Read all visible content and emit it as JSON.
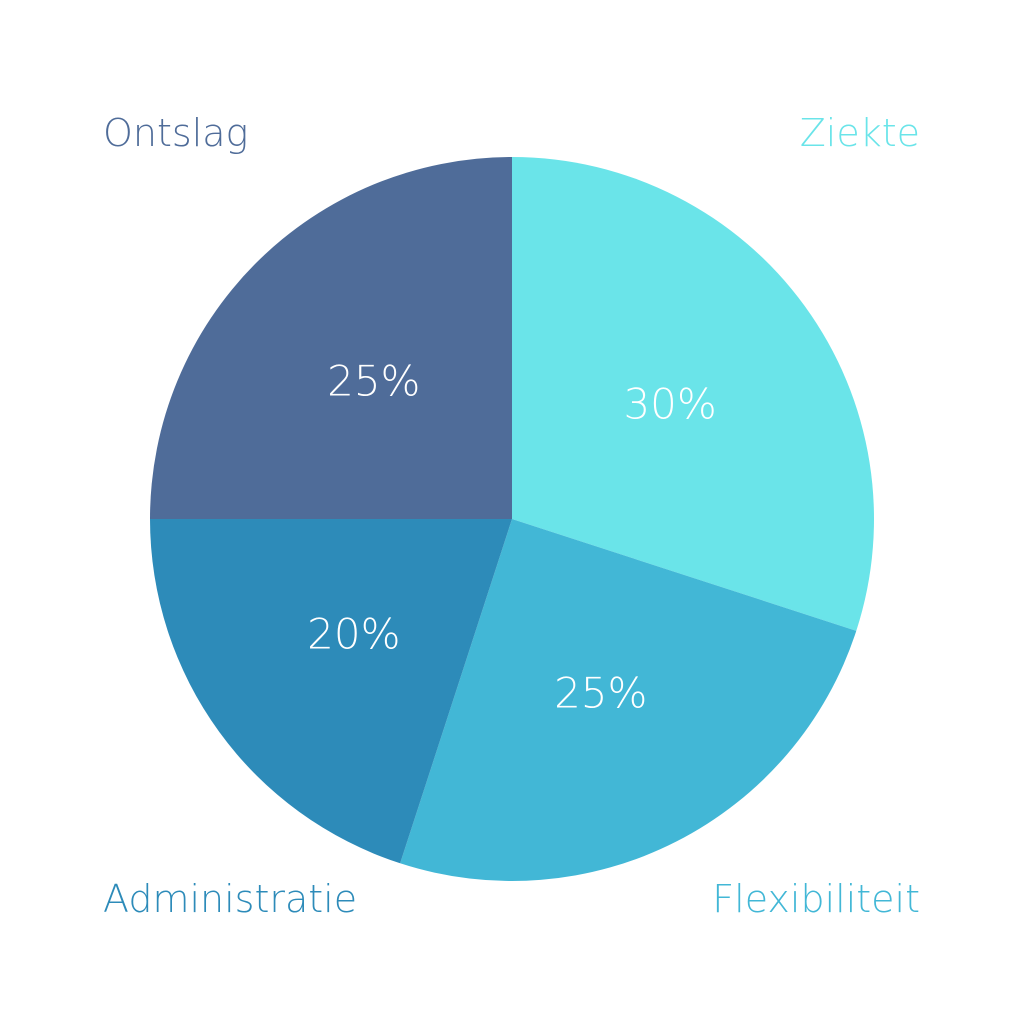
{
  "chart_data": {
    "type": "pie",
    "start_angle_deg": 0,
    "direction": "clockwise",
    "slices": [
      {
        "name": "Ziekte",
        "value": 30,
        "label": "30%",
        "color": "#6ae4e9",
        "label_color": "#6ae4e9"
      },
      {
        "name": "Flexibiliteit",
        "value": 25,
        "label": "25%",
        "color": "#42b7d6",
        "label_color": "#42b7d6"
      },
      {
        "name": "Administratie",
        "value": 20,
        "label": "20%",
        "color": "#2d8bb9",
        "label_color": "#2d8bb9"
      },
      {
        "name": "Ontslag",
        "value": 25,
        "label": "25%",
        "color": "#4f6c99",
        "label_color": "#4f6c99"
      }
    ]
  }
}
